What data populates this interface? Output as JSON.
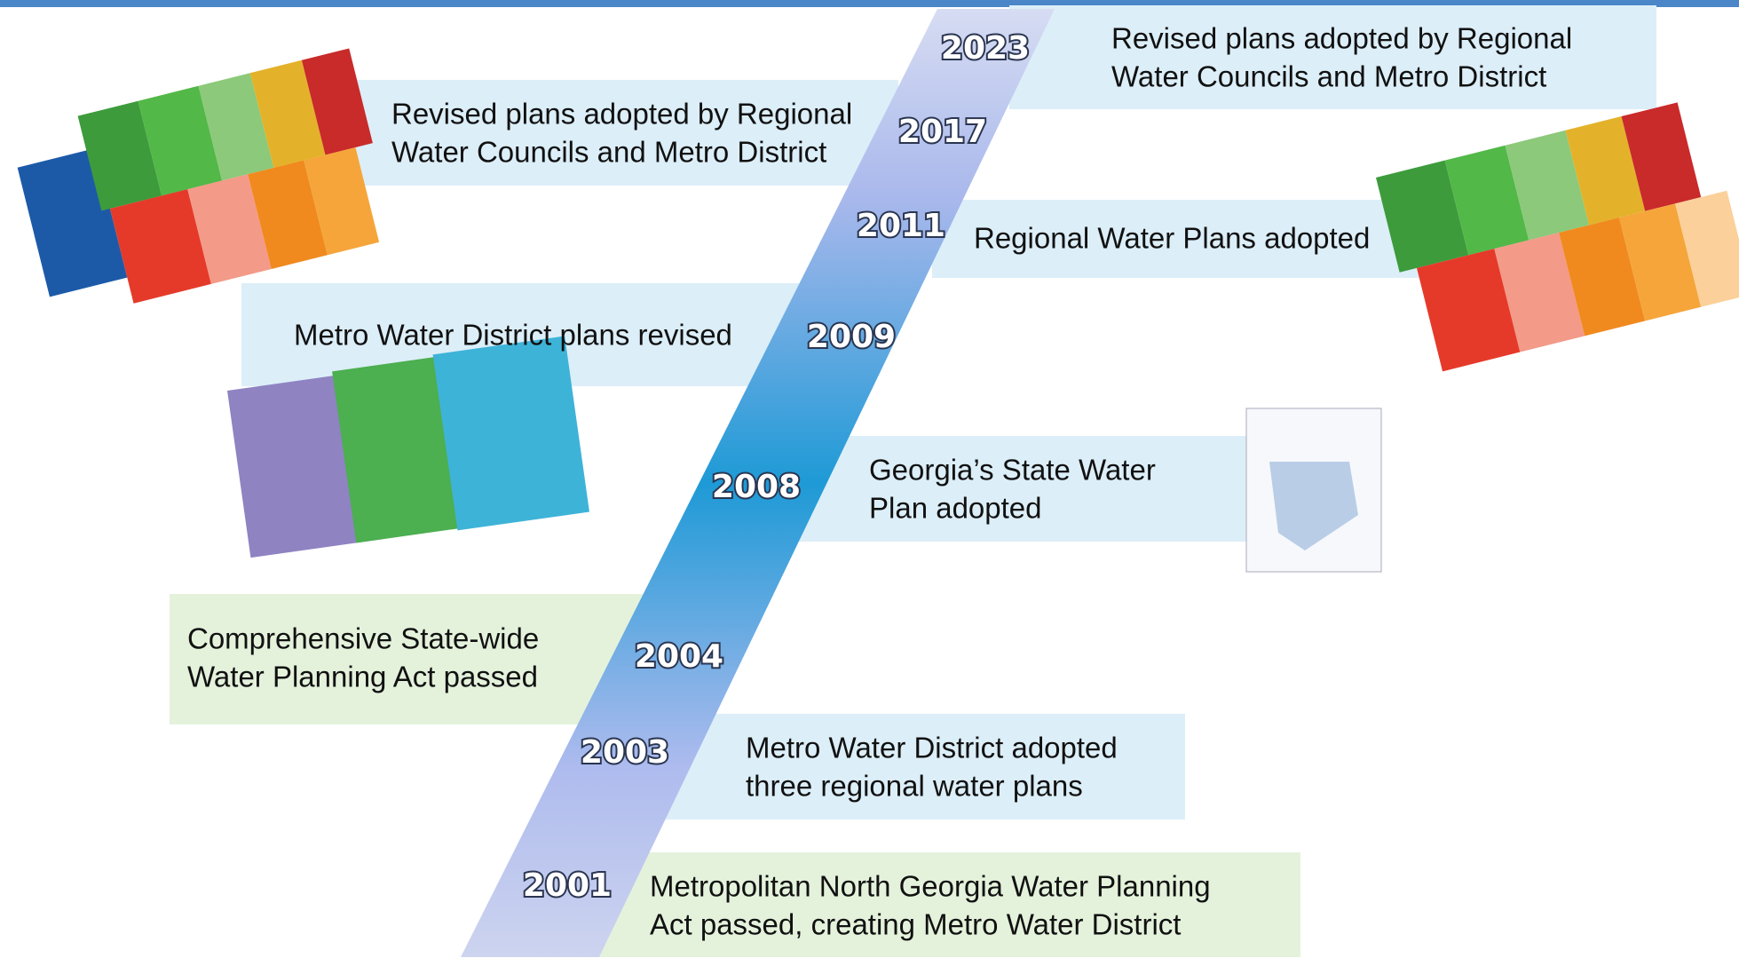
{
  "timeline": {
    "events": [
      {
        "year": "2023",
        "lines": [
          "Revised plans adopted by Regional",
          "Water Councils and Metro District"
        ]
      },
      {
        "year": "2017",
        "lines": [
          "Revised plans adopted by Regional",
          "Water Councils and Metro District"
        ]
      },
      {
        "year": "2011",
        "lines": [
          "Regional Water Plans adopted"
        ]
      },
      {
        "year": "2009",
        "lines": [
          "Metro Water District plans revised"
        ]
      },
      {
        "year": "2008",
        "lines": [
          "Georgia’s State Water",
          "Plan adopted"
        ]
      },
      {
        "year": "2004",
        "lines": [
          "Comprehensive State-wide",
          "Water Planning Act passed"
        ]
      },
      {
        "year": "2003",
        "lines": [
          "Metro Water District adopted",
          "three regional water plans"
        ]
      },
      {
        "year": "2001",
        "lines": [
          "Metropolitan North Georgia Water Planning",
          "Act passed, creating Metro Water District"
        ]
      }
    ]
  }
}
